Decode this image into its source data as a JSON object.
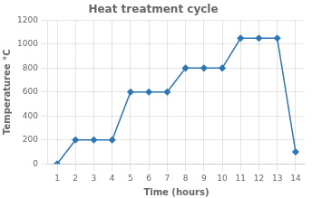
{
  "chart_data": {
    "type": "line",
    "title": "Heat treatment cycle",
    "xlabel": "Time (hours)",
    "ylabel": "Temperaturee °C",
    "x": [
      1,
      2,
      3,
      4,
      5,
      6,
      7,
      8,
      9,
      10,
      11,
      12,
      13,
      14
    ],
    "values": [
      0,
      200,
      200,
      200,
      600,
      600,
      600,
      800,
      800,
      800,
      1050,
      1050,
      1050,
      100
    ],
    "xlim": [
      0.5,
      14.5
    ],
    "ylim": [
      0,
      1200
    ],
    "xticks": [
      1,
      2,
      3,
      4,
      5,
      6,
      7,
      8,
      9,
      10,
      11,
      12,
      13,
      14
    ],
    "yticks": [
      0,
      200,
      400,
      600,
      800,
      1000,
      1200
    ],
    "color": "#2E75B6",
    "marker": "diamond",
    "grid": true
  }
}
